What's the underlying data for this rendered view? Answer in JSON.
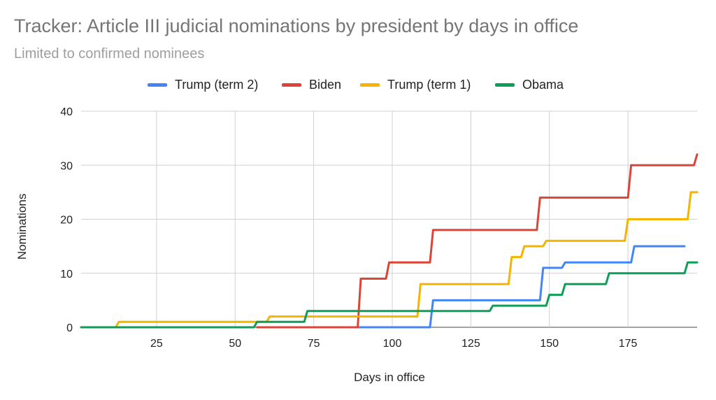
{
  "chart_data": {
    "type": "line",
    "step": true,
    "title": "Tracker: Article III judicial nominations by president by days in office",
    "subtitle": "Limited to confirmed nominees",
    "xlabel": "Days in office",
    "ylabel": "Nominations",
    "xlim": [
      1,
      197
    ],
    "ylim": [
      0,
      40
    ],
    "x_ticks": [
      25,
      50,
      75,
      100,
      125,
      150,
      175
    ],
    "y_ticks": [
      0,
      10,
      20,
      30,
      40
    ],
    "grid": true,
    "legend_position": "top-center",
    "series": [
      {
        "name": "Trump (term 2)",
        "color": "#4285F4",
        "points": [
          [
            89,
            0
          ],
          [
            112,
            0
          ],
          [
            113,
            5
          ],
          [
            147,
            5
          ],
          [
            148,
            11
          ],
          [
            154,
            11
          ],
          [
            155,
            12
          ],
          [
            176,
            12
          ],
          [
            177,
            15
          ],
          [
            193,
            15
          ]
        ]
      },
      {
        "name": "Biden",
        "color": "#DB4437",
        "points": [
          [
            57,
            0
          ],
          [
            89,
            0
          ],
          [
            90,
            9
          ],
          [
            98,
            9
          ],
          [
            99,
            12
          ],
          [
            112,
            12
          ],
          [
            113,
            18
          ],
          [
            146,
            18
          ],
          [
            147,
            24
          ],
          [
            175,
            24
          ],
          [
            176,
            30
          ],
          [
            196,
            30
          ],
          [
            197,
            32
          ]
        ]
      },
      {
        "name": "Trump (term 1)",
        "color": "#F4B400",
        "points": [
          [
            1,
            0
          ],
          [
            12,
            0
          ],
          [
            13,
            1
          ],
          [
            60,
            1
          ],
          [
            61,
            2
          ],
          [
            108,
            2
          ],
          [
            109,
            8
          ],
          [
            137,
            8
          ],
          [
            138,
            13
          ],
          [
            141,
            13
          ],
          [
            142,
            15
          ],
          [
            148,
            15
          ],
          [
            149,
            16
          ],
          [
            174,
            16
          ],
          [
            175,
            20
          ],
          [
            194,
            20
          ],
          [
            195,
            25
          ],
          [
            197,
            25
          ]
        ]
      },
      {
        "name": "Obama",
        "color": "#0F9D58",
        "points": [
          [
            1,
            0
          ],
          [
            56,
            0
          ],
          [
            57,
            1
          ],
          [
            72,
            1
          ],
          [
            73,
            3
          ],
          [
            131,
            3
          ],
          [
            132,
            4
          ],
          [
            149,
            4
          ],
          [
            150,
            6
          ],
          [
            154,
            6
          ],
          [
            155,
            8
          ],
          [
            168,
            8
          ],
          [
            169,
            10
          ],
          [
            193,
            10
          ],
          [
            194,
            12
          ],
          [
            197,
            12
          ]
        ]
      }
    ]
  }
}
